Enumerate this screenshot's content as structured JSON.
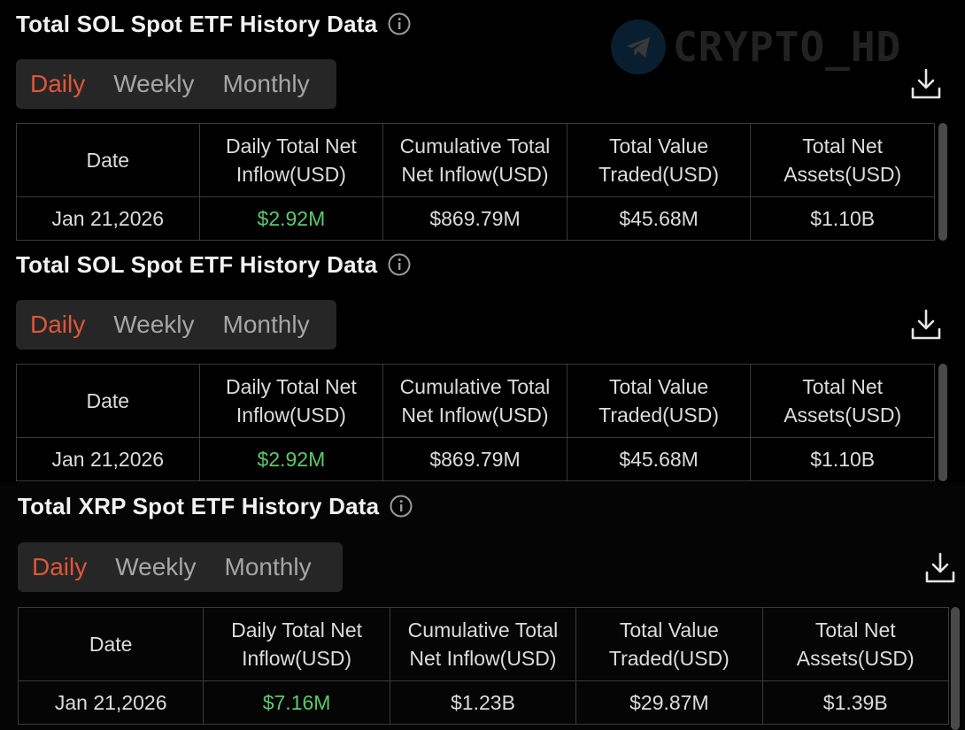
{
  "watermark": {
    "text": "CRYPTO_HD"
  },
  "panels": [
    {
      "title": "Total SOL Spot ETF History Data",
      "tabs": [
        "Daily",
        "Weekly",
        "Monthly"
      ],
      "active_tab": "Daily",
      "headers": [
        "Date",
        "Daily Total Net Inflow(USD)",
        "Cumulative Total Net Inflow(USD)",
        "Total Value Traded(USD)",
        "Total Net Assets(USD)"
      ],
      "row": [
        "Jan 21,2026",
        "$2.92M",
        "$869.79M",
        "$45.68M",
        "$1.10B"
      ]
    },
    {
      "title": "Total SOL Spot ETF History Data",
      "tabs": [
        "Daily",
        "Weekly",
        "Monthly"
      ],
      "active_tab": "Daily",
      "headers": [
        "Date",
        "Daily Total Net Inflow(USD)",
        "Cumulative Total Net Inflow(USD)",
        "Total Value Traded(USD)",
        "Total Net Assets(USD)"
      ],
      "row": [
        "Jan 21,2026",
        "$2.92M",
        "$869.79M",
        "$45.68M",
        "$1.10B"
      ]
    },
    {
      "title": "Total XRP Spot ETF History Data",
      "tabs": [
        "Daily",
        "Weekly",
        "Monthly"
      ],
      "active_tab": "Daily",
      "headers": [
        "Date",
        "Daily Total Net Inflow(USD)",
        "Cumulative Total Net Inflow(USD)",
        "Total Value Traded(USD)",
        "Total Net Assets(USD)"
      ],
      "row": [
        "Jan 21,2026",
        "$7.16M",
        "$1.23B",
        "$29.87M",
        "$1.39B"
      ]
    }
  ],
  "colors": {
    "active_tab": "#e0553a",
    "positive": "#5cc96b",
    "background": "#000000"
  },
  "icons": {
    "info": "info-icon",
    "download": "download-icon",
    "logo": "telegram-icon"
  }
}
